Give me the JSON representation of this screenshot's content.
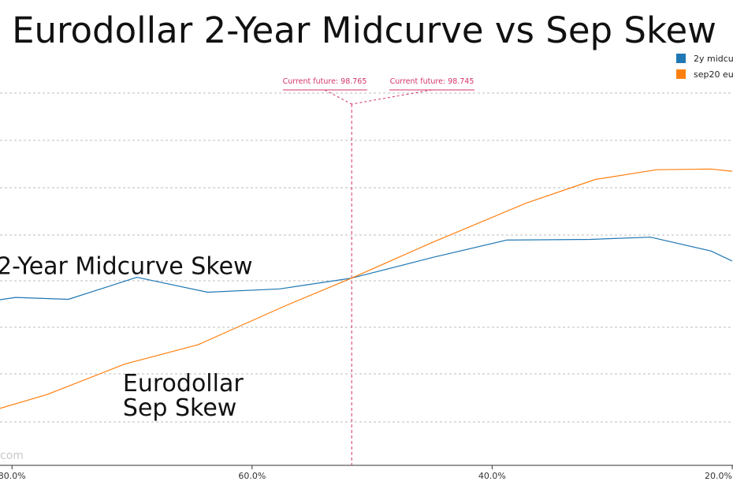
{
  "chart_data": {
    "type": "line",
    "title": "Eurodollar 2-Year Midcurve vs Sep Skew",
    "x_ticks": [
      {
        "value": 80,
        "label": "80.0%"
      },
      {
        "value": 60,
        "label": "60.0%"
      },
      {
        "value": 40,
        "label": "40.0%"
      },
      {
        "value": 20,
        "label": "20.0%"
      }
    ],
    "x_range": [
      81,
      20
    ],
    "y_range": [
      0,
      100
    ],
    "grid": "horizontal-dashed",
    "legend_position": "top-right",
    "series": [
      {
        "name": "2y midcu",
        "color": "#1f77b4",
        "points": [
          {
            "x": 81,
            "y": 44.5
          },
          {
            "x": 79.7,
            "y": 45.1
          },
          {
            "x": 75.3,
            "y": 44.6
          },
          {
            "x": 69.6,
            "y": 50.5
          },
          {
            "x": 63.7,
            "y": 46.5
          },
          {
            "x": 57.7,
            "y": 47.4
          },
          {
            "x": 51.7,
            "y": 50.3
          },
          {
            "x": 44.9,
            "y": 55.9
          },
          {
            "x": 38.8,
            "y": 60.5
          },
          {
            "x": 31.8,
            "y": 60.7
          },
          {
            "x": 26.8,
            "y": 61.3
          },
          {
            "x": 21.8,
            "y": 57.6
          },
          {
            "x": 20.0,
            "y": 54.9
          }
        ]
      },
      {
        "name": "sep20 eu",
        "color": "#ff7f0e",
        "points": [
          {
            "x": 81,
            "y": 15.3
          },
          {
            "x": 77.1,
            "y": 19.0
          },
          {
            "x": 70.6,
            "y": 27.2
          },
          {
            "x": 64.5,
            "y": 32.4
          },
          {
            "x": 57.2,
            "y": 42.9
          },
          {
            "x": 51.7,
            "y": 50.3
          },
          {
            "x": 44.9,
            "y": 60.0
          },
          {
            "x": 37.2,
            "y": 70.4
          },
          {
            "x": 31.4,
            "y": 76.8
          },
          {
            "x": 26.3,
            "y": 79.4
          },
          {
            "x": 21.8,
            "y": 79.6
          },
          {
            "x": 20.0,
            "y": 79.0
          }
        ]
      }
    ],
    "annotations": [
      {
        "text": "2-Year Midcurve Skew",
        "x": 81,
        "y": 53.5
      },
      {
        "text": "Eurodollar",
        "x": 70.5,
        "y": 22.0
      },
      {
        "text": "Sep Skew",
        "x": 70.5,
        "y": 15.5
      }
    ],
    "markers": {
      "x": 51.7,
      "color": "#d6336c",
      "labels": [
        "Current future: 98.765",
        "Current future: 98.745"
      ]
    },
    "watermark": "com"
  }
}
